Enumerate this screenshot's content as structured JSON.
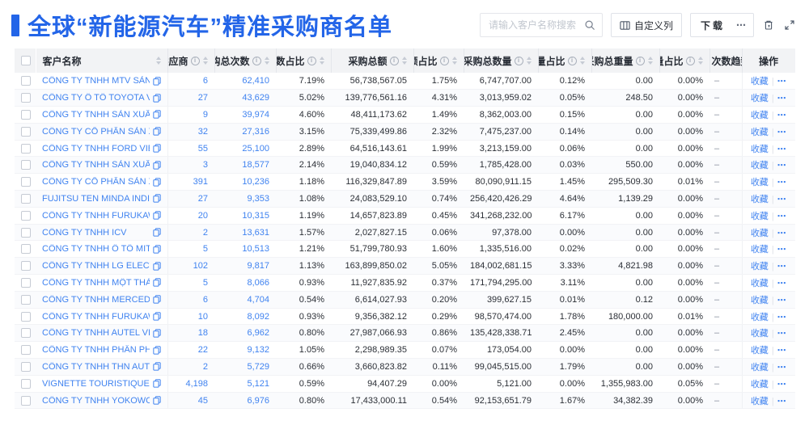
{
  "header": {
    "title": "全球“新能源汽车”精准采购商名单",
    "accent_color": "#2365e8"
  },
  "toolbar": {
    "search": {
      "placeholder": "请输入客户名称搜索",
      "icon": "search-icon"
    },
    "customize_columns_label": "自定义列",
    "download_label": "下载",
    "download_more_label": "⋯",
    "icons": [
      "trash-icon",
      "fullscreen-icon"
    ]
  },
  "table": {
    "columns": [
      {
        "key": "name",
        "label": "客户名称",
        "info": false,
        "sortable": true,
        "align": "left"
      },
      {
        "key": "suppliers",
        "label": "供应商",
        "info": true,
        "sortable": true,
        "align": "right"
      },
      {
        "key": "purchase_count",
        "label": "采购总次数",
        "info": true,
        "sortable": true,
        "align": "right"
      },
      {
        "key": "count_pct",
        "label": "次数占比",
        "info": true,
        "sortable": true,
        "align": "right"
      },
      {
        "key": "amount",
        "label": "采购总额",
        "info": true,
        "sortable": true,
        "align": "right"
      },
      {
        "key": "amount_pct",
        "label": "总额占比",
        "info": true,
        "sortable": true,
        "align": "right"
      },
      {
        "key": "quantity",
        "label": "采购总数量",
        "info": true,
        "sortable": true,
        "align": "right"
      },
      {
        "key": "quantity_pct",
        "label": "数量占比",
        "info": true,
        "sortable": true,
        "align": "right"
      },
      {
        "key": "weight",
        "label": "采购总重量",
        "info": true,
        "sortable": true,
        "align": "right"
      },
      {
        "key": "weight_pct",
        "label": "重量占比",
        "info": true,
        "sortable": true,
        "align": "right"
      },
      {
        "key": "trend",
        "label": "次数趋势",
        "info": false,
        "sortable": false,
        "align": "left"
      },
      {
        "key": "ops",
        "label": "操作",
        "info": false,
        "sortable": false,
        "align": "center"
      }
    ],
    "actions": {
      "favorite": "收藏",
      "more": "⋯"
    },
    "rows": [
      {
        "name": "CÔNG TY TNHH MTV SẢN XUẤ...",
        "suppliers": "6",
        "purchase_count": "62,410",
        "count_pct": "7.19%",
        "amount": "56,738,567.05",
        "amount_pct": "1.75%",
        "quantity": "6,747,707.00",
        "quantity_pct": "0.12%",
        "weight": "0.00",
        "weight_pct": "0.00%",
        "trend": "–"
      },
      {
        "name": "CÔNG TY Ô TÔ TOYOTA VIỆT ...",
        "suppliers": "27",
        "purchase_count": "43,629",
        "count_pct": "5.02%",
        "amount": "139,776,561.16",
        "amount_pct": "4.31%",
        "quantity": "3,013,959.02",
        "quantity_pct": "0.05%",
        "weight": "248.50",
        "weight_pct": "0.00%",
        "trend": "–"
      },
      {
        "name": "CÔNG TY TNHH SẢN XUẤT VÀ ...",
        "suppliers": "9",
        "purchase_count": "39,974",
        "count_pct": "4.60%",
        "amount": "48,411,173.62",
        "amount_pct": "1.49%",
        "quantity": "8,362,003.00",
        "quantity_pct": "0.15%",
        "weight": "0.00",
        "weight_pct": "0.00%",
        "trend": "–"
      },
      {
        "name": "CÔNG TY CỔ PHẦN SẢN XUẤT...",
        "suppliers": "32",
        "purchase_count": "27,316",
        "count_pct": "3.15%",
        "amount": "75,339,499.86",
        "amount_pct": "2.32%",
        "quantity": "7,475,237.00",
        "quantity_pct": "0.14%",
        "weight": "0.00",
        "weight_pct": "0.00%",
        "trend": "–"
      },
      {
        "name": "CÔNG TY TNHH FORD VIỆT NAM",
        "suppliers": "55",
        "purchase_count": "25,100",
        "count_pct": "2.89%",
        "amount": "64,516,143.61",
        "amount_pct": "1.99%",
        "quantity": "3,213,159.00",
        "quantity_pct": "0.06%",
        "weight": "0.00",
        "weight_pct": "0.00%",
        "trend": "–"
      },
      {
        "name": "CÔNG TY TNHH SẢN XUẤT VÀ ...",
        "suppliers": "3",
        "purchase_count": "18,577",
        "count_pct": "2.14%",
        "amount": "19,040,834.12",
        "amount_pct": "0.59%",
        "quantity": "1,785,428.00",
        "quantity_pct": "0.03%",
        "weight": "550.00",
        "weight_pct": "0.00%",
        "trend": "–"
      },
      {
        "name": "CÔNG TY CỔ PHẦN SẢN XUẤT...",
        "suppliers": "391",
        "purchase_count": "10,236",
        "count_pct": "1.18%",
        "amount": "116,329,847.89",
        "amount_pct": "3.59%",
        "quantity": "80,090,911.15",
        "quantity_pct": "1.45%",
        "weight": "295,509.30",
        "weight_pct": "0.01%",
        "trend": "–"
      },
      {
        "name": "FUJITSU TEN MINDA INDIA PVT...",
        "suppliers": "27",
        "purchase_count": "9,353",
        "count_pct": "1.08%",
        "amount": "24,083,529.10",
        "amount_pct": "0.74%",
        "quantity": "256,420,426.29",
        "quantity_pct": "4.64%",
        "weight": "1,139.29",
        "weight_pct": "0.00%",
        "trend": "–"
      },
      {
        "name": "CÔNG TY TNHH FURUKAWA A...",
        "suppliers": "20",
        "purchase_count": "10,315",
        "count_pct": "1.19%",
        "amount": "14,657,823.89",
        "amount_pct": "0.45%",
        "quantity": "341,268,232.00",
        "quantity_pct": "6.17%",
        "weight": "0.00",
        "weight_pct": "0.00%",
        "trend": "–"
      },
      {
        "name": "CÔNG TY TNHH ICV",
        "suppliers": "2",
        "purchase_count": "13,631",
        "count_pct": "1.57%",
        "amount": "2,027,827.15",
        "amount_pct": "0.06%",
        "quantity": "97,378.00",
        "quantity_pct": "0.00%",
        "weight": "0.00",
        "weight_pct": "0.00%",
        "trend": "–"
      },
      {
        "name": "CÔNG TY TNHH Ô TÔ MITSUBI...",
        "suppliers": "5",
        "purchase_count": "10,513",
        "count_pct": "1.21%",
        "amount": "51,799,780.93",
        "amount_pct": "1.60%",
        "quantity": "1,335,516.00",
        "quantity_pct": "0.02%",
        "weight": "0.00",
        "weight_pct": "0.00%",
        "trend": "–"
      },
      {
        "name": "CÔNG TY TNHH LG ELECTRON...",
        "suppliers": "102",
        "purchase_count": "9,817",
        "count_pct": "1.13%",
        "amount": "163,899,850.02",
        "amount_pct": "5.05%",
        "quantity": "184,002,681.15",
        "quantity_pct": "3.33%",
        "weight": "4,821.98",
        "weight_pct": "0.00%",
        "trend": "–"
      },
      {
        "name": "CÔNG TY TNHH MỘT THÀNH V...",
        "suppliers": "5",
        "purchase_count": "8,066",
        "count_pct": "0.93%",
        "amount": "11,927,835.92",
        "amount_pct": "0.37%",
        "quantity": "171,794,295.00",
        "quantity_pct": "3.11%",
        "weight": "0.00",
        "weight_pct": "0.00%",
        "trend": "–"
      },
      {
        "name": "CÔNG TY TNHH MERCEDES-B...",
        "suppliers": "6",
        "purchase_count": "4,704",
        "count_pct": "0.54%",
        "amount": "6,614,027.93",
        "amount_pct": "0.20%",
        "quantity": "399,627.15",
        "quantity_pct": "0.01%",
        "weight": "0.12",
        "weight_pct": "0.00%",
        "trend": "–"
      },
      {
        "name": "CÔNG TY TNHH FURUKAWA A...",
        "suppliers": "10",
        "purchase_count": "8,092",
        "count_pct": "0.93%",
        "amount": "9,356,382.12",
        "amount_pct": "0.29%",
        "quantity": "98,570,474.00",
        "quantity_pct": "1.78%",
        "weight": "180,000.00",
        "weight_pct": "0.01%",
        "trend": "–"
      },
      {
        "name": "CÔNG TY TNHH AUTEL VIỆT N...",
        "suppliers": "18",
        "purchase_count": "6,962",
        "count_pct": "0.80%",
        "amount": "27,987,066.93",
        "amount_pct": "0.86%",
        "quantity": "135,428,338.71",
        "quantity_pct": "2.45%",
        "weight": "0.00",
        "weight_pct": "0.00%",
        "trend": "–"
      },
      {
        "name": "CÔNG TY TNHH PHÂN PHỐI T...",
        "suppliers": "22",
        "purchase_count": "9,132",
        "count_pct": "1.05%",
        "amount": "2,298,989.35",
        "amount_pct": "0.07%",
        "quantity": "173,054.00",
        "quantity_pct": "0.00%",
        "weight": "0.00",
        "weight_pct": "0.00%",
        "trend": "–"
      },
      {
        "name": "CÔNG TY TNHH THN AUTOPAR...",
        "suppliers": "2",
        "purchase_count": "5,729",
        "count_pct": "0.66%",
        "amount": "3,660,823.82",
        "amount_pct": "0.11%",
        "quantity": "99,045,515.00",
        "quantity_pct": "1.79%",
        "weight": "0.00",
        "weight_pct": "0.00%",
        "trend": "–"
      },
      {
        "name": "VIGNETTE TOURISTIQUE G UNI...",
        "suppliers": "4,198",
        "purchase_count": "5,121",
        "count_pct": "0.59%",
        "amount": "94,407.29",
        "amount_pct": "0.00%",
        "quantity": "5,121.00",
        "quantity_pct": "0.00%",
        "weight": "1,355,983.00",
        "weight_pct": "0.05%",
        "trend": "–"
      },
      {
        "name": "CÔNG TY TNHH YOKOWO VIỆT...",
        "suppliers": "45",
        "purchase_count": "6,976",
        "count_pct": "0.80%",
        "amount": "17,433,000.11",
        "amount_pct": "0.54%",
        "quantity": "92,153,651.79",
        "quantity_pct": "1.67%",
        "weight": "34,382.39",
        "weight_pct": "0.00%",
        "trend": "–"
      }
    ]
  }
}
